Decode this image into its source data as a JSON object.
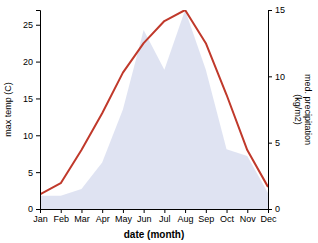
{
  "chart_data": {
    "type": "line",
    "categories": [
      "Jan",
      "Feb",
      "Mar",
      "Apr",
      "May",
      "Jun",
      "Jul",
      "Aug",
      "Sep",
      "Oct",
      "Nov",
      "Dec"
    ],
    "series": [
      {
        "type": "area",
        "axis": "y2",
        "color": "#c5cce8",
        "values": [
          1.0,
          1.0,
          1.5,
          3.5,
          7.5,
          13.5,
          10.5,
          15.0,
          10.5,
          4.5,
          4.0,
          1.2
        ]
      },
      {
        "type": "line",
        "color": "#c0392b",
        "values": [
          2.0,
          3.5,
          8.0,
          13.0,
          18.5,
          22.5,
          25.5,
          27.0,
          22.5,
          15.5,
          8.0,
          3.0
        ]
      }
    ],
    "xlabel": "date (month)",
    "ylabel": "max temp (C)",
    "y2label": "med. precipitation\n(kg/m2)",
    "ylim": [
      0,
      27
    ],
    "yticks": [
      0,
      5,
      10,
      15,
      20,
      25
    ],
    "y2lim": [
      0,
      15
    ],
    "y2ticks": [
      0,
      5,
      10,
      15
    ],
    "grid": false
  }
}
